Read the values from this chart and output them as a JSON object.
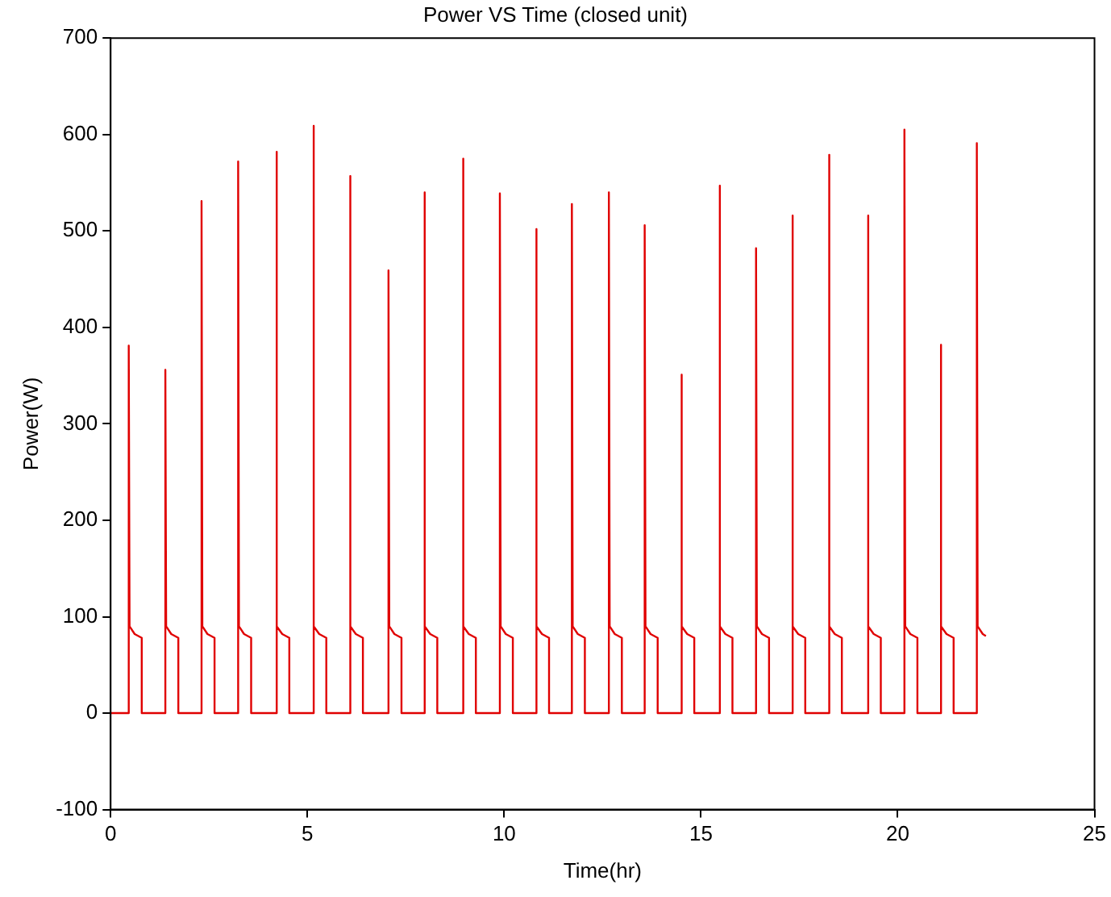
{
  "chart_data": {
    "type": "line",
    "title": "Power VS Time (closed unit)",
    "xlabel": "Time(hr)",
    "ylabel": "Power(W)",
    "xlim": [
      0,
      25
    ],
    "xticks": [
      0,
      5,
      10,
      15,
      20,
      25
    ],
    "ylim": [
      -100,
      700
    ],
    "yticks": [
      -100,
      0,
      100,
      200,
      300,
      400,
      500,
      600,
      700
    ],
    "grid": false,
    "legend": false,
    "marker": "none",
    "line_style": "solid",
    "series": [
      {
        "color": "#e00000",
        "x": [
          0,
          0.46,
          0.46,
          0.48,
          0.61,
          0.79,
          0.79,
          1.39,
          1.39,
          1.41,
          1.54,
          1.72,
          1.72,
          2.31,
          2.31,
          2.33,
          2.46,
          2.64,
          2.64,
          3.24,
          3.24,
          3.26,
          3.39,
          3.57,
          3.57,
          4.21,
          4.21,
          4.23,
          4.36,
          4.54,
          4.54,
          5.15,
          5.15,
          5.17,
          5.3,
          5.48,
          5.48,
          6.08,
          6.08,
          6.1,
          6.23,
          6.41,
          6.41,
          7.06,
          7.06,
          7.08,
          7.21,
          7.39,
          7.39,
          7.97,
          7.97,
          7.99,
          8.12,
          8.3,
          8.3,
          8.95,
          8.95,
          8.97,
          9.1,
          9.28,
          9.28,
          9.89,
          9.89,
          9.91,
          10.04,
          10.22,
          10.22,
          10.81,
          10.81,
          10.83,
          10.96,
          11.14,
          11.14,
          11.72,
          11.72,
          11.74,
          11.87,
          12.05,
          12.05,
          12.66,
          12.66,
          12.68,
          12.81,
          12.99,
          12.99,
          13.57,
          13.57,
          13.59,
          13.72,
          13.9,
          13.9,
          14.5,
          14.5,
          14.52,
          14.65,
          14.83,
          14.83,
          15.47,
          15.47,
          15.49,
          15.62,
          15.8,
          15.8,
          16.4,
          16.4,
          16.42,
          16.55,
          16.73,
          16.73,
          17.32,
          17.32,
          17.34,
          17.47,
          17.65,
          17.65,
          18.25,
          18.25,
          18.27,
          18.4,
          18.58,
          18.58,
          19.24,
          19.24,
          19.26,
          19.39,
          19.57,
          19.57,
          20.17,
          20.17,
          20.19,
          20.32,
          20.5,
          20.5,
          21.09,
          21.09,
          21.11,
          21.24,
          21.42,
          21.42,
          22.01,
          22.01,
          22.03,
          22.16,
          22.24
        ],
        "values": [
          0,
          0,
          381,
          90,
          82,
          78,
          0,
          0,
          356,
          90,
          82,
          78,
          0,
          0,
          531,
          90,
          82,
          78,
          0,
          0,
          572,
          90,
          82,
          78,
          0,
          0,
          582,
          90,
          82,
          78,
          0,
          0,
          609,
          90,
          82,
          78,
          0,
          0,
          557,
          90,
          82,
          78,
          0,
          0,
          459,
          90,
          82,
          78,
          0,
          0,
          540,
          90,
          82,
          78,
          0,
          0,
          575,
          90,
          82,
          78,
          0,
          0,
          539,
          90,
          82,
          78,
          0,
          0,
          502,
          90,
          82,
          78,
          0,
          0,
          528,
          90,
          82,
          78,
          0,
          0,
          540,
          90,
          82,
          78,
          0,
          0,
          506,
          90,
          82,
          78,
          0,
          0,
          351,
          90,
          82,
          78,
          0,
          0,
          547,
          90,
          82,
          78,
          0,
          0,
          482,
          90,
          82,
          78,
          0,
          0,
          516,
          90,
          82,
          78,
          0,
          0,
          579,
          90,
          82,
          78,
          0,
          0,
          516,
          90,
          82,
          78,
          0,
          0,
          605,
          90,
          82,
          78,
          0,
          0,
          382,
          90,
          82,
          78,
          0,
          0,
          591,
          90,
          82,
          80
        ]
      }
    ]
  }
}
